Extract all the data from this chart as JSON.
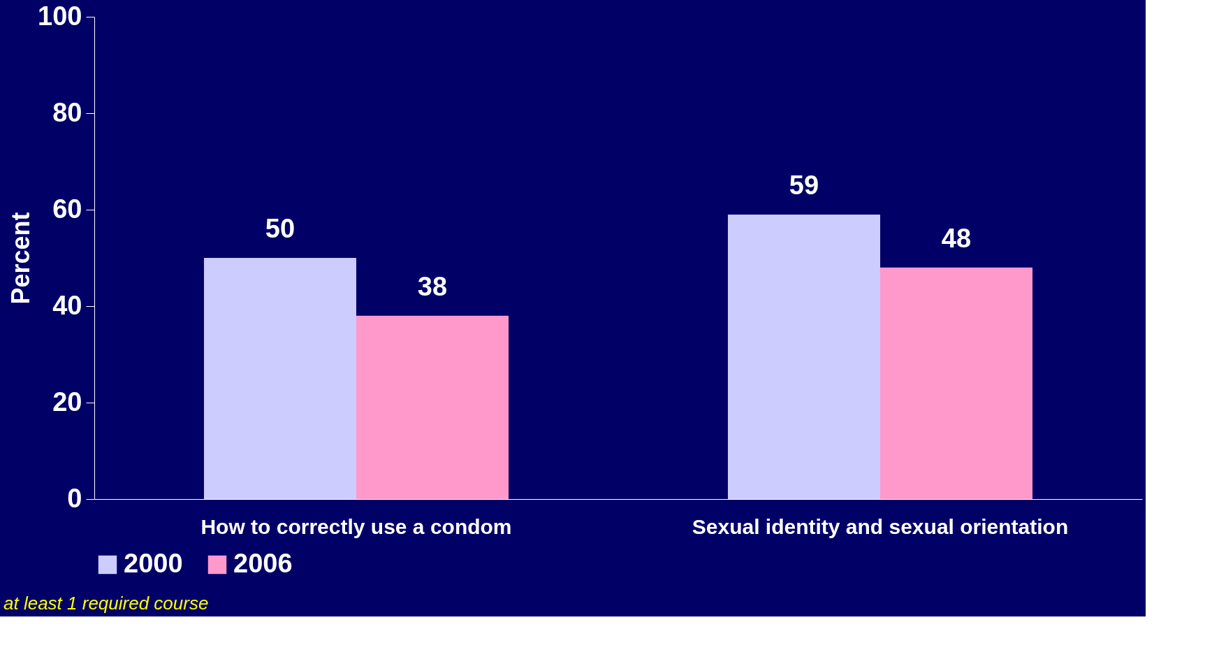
{
  "chart_data": {
    "type": "bar",
    "ylabel": "Percent",
    "categories": [
      "How to correctly use a condom",
      "Sexual identity and sexual orientation"
    ],
    "series": [
      {
        "name": "2000",
        "color": "#ccccff",
        "values": [
          50,
          59
        ]
      },
      {
        "name": "2006",
        "color": "#ff99cc",
        "values": [
          38,
          48
        ]
      }
    ],
    "ylim": [
      0,
      100
    ],
    "yticks": [
      0,
      20,
      40,
      60,
      80,
      100
    ],
    "grid": false,
    "legend": "bottom",
    "data_labels": true,
    "annotations": [
      "at least 1 required course"
    ]
  }
}
